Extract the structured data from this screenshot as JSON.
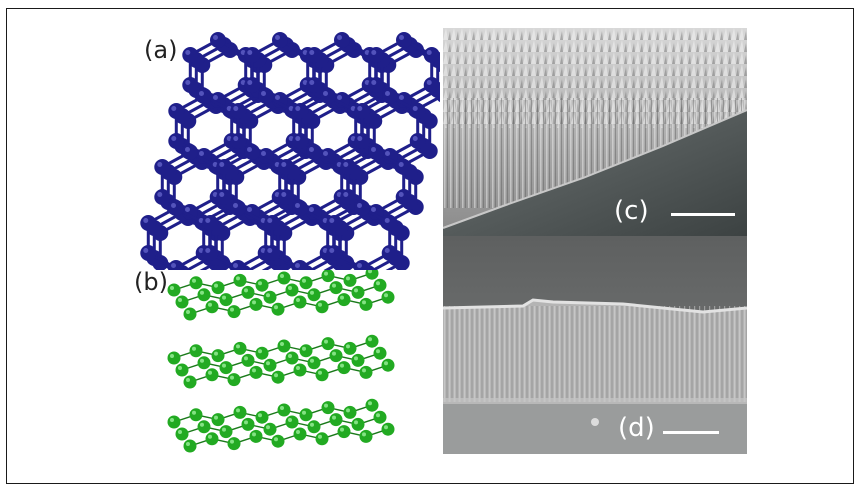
{
  "figure": {
    "panel_a": {
      "label": "(a)",
      "atom_color": "#1f1f8a"
    },
    "panel_b": {
      "label": "(b)",
      "atom_color": "#22aa22"
    },
    "panel_c": {
      "label": "(c)"
    },
    "panel_d": {
      "label": "(d)"
    }
  }
}
